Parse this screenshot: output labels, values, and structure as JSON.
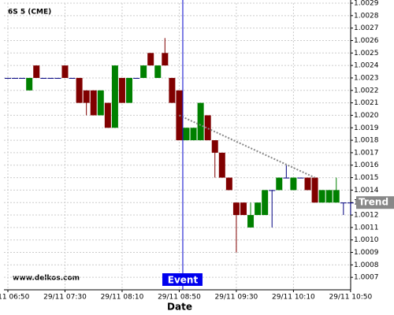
{
  "chart_data": {
    "type": "candlestick",
    "title": "6S 5 (CME)",
    "watermark": "www.delkos.com",
    "x_label": "Date",
    "x": [
      "29/11 06:50",
      "29/11 06:55",
      "29/11 07:00",
      "29/11 07:05",
      "29/11 07:10",
      "29/11 07:15",
      "29/11 07:20",
      "29/11 07:25",
      "29/11 07:30",
      "29/11 07:35",
      "29/11 07:40",
      "29/11 07:45",
      "29/11 07:50",
      "29/11 07:55",
      "29/11 08:00",
      "29/11 08:05",
      "29/11 08:10",
      "29/11 08:15",
      "29/11 08:20",
      "29/11 08:25",
      "29/11 08:30",
      "29/11 08:35",
      "29/11 08:40",
      "29/11 08:45",
      "29/11 08:50",
      "29/11 08:55",
      "29/11 09:00",
      "29/11 09:05",
      "29/11 09:10",
      "29/11 09:15",
      "29/11 09:20",
      "29/11 09:25",
      "29/11 09:30",
      "29/11 09:35",
      "29/11 09:40",
      "29/11 09:45",
      "29/11 09:50",
      "29/11 09:55",
      "29/11 10:00",
      "29/11 10:05",
      "29/11 10:10",
      "29/11 10:15",
      "29/11 10:20",
      "29/11 10:25",
      "29/11 10:30",
      "29/11 10:35",
      "29/11 10:40",
      "29/11 10:45",
      "29/11 10:50"
    ],
    "open": [
      1.0023,
      1.0023,
      1.0023,
      1.0022,
      1.0024,
      1.0023,
      1.0023,
      1.0023,
      1.0024,
      1.0023,
      1.0023,
      1.0022,
      1.0022,
      1.002,
      1.0021,
      1.0019,
      1.0023,
      1.0021,
      1.0023,
      1.0023,
      1.0025,
      1.0023,
      1.0025,
      1.0023,
      1.0022,
      1.0018,
      1.0018,
      1.0018,
      1.002,
      1.0018,
      1.0017,
      1.0015,
      1.0013,
      1.0013,
      1.0011,
      1.0012,
      1.0012,
      1.0014,
      1.0014,
      1.0015,
      1.0014,
      1.0015,
      1.0015,
      1.0015,
      1.0013,
      1.0013,
      1.0013,
      1.0013,
      1.0013
    ],
    "high": [
      1.0023,
      1.0023,
      1.0023,
      1.0023,
      1.0024,
      1.0023,
      1.0023,
      1.0023,
      1.0024,
      1.0023,
      1.0023,
      1.0022,
      1.0022,
      1.0022,
      1.0021,
      1.0024,
      1.0023,
      1.0023,
      1.0023,
      1.0024,
      1.0025,
      1.0024,
      1.00262,
      1.0023,
      1.0022,
      1.0019,
      1.0019,
      1.0021,
      1.002,
      1.0018,
      1.0017,
      1.0015,
      1.0013,
      1.0013,
      1.0013,
      1.0013,
      1.0014,
      1.0014,
      1.0015,
      1.0016,
      1.0015,
      1.0015,
      1.0015,
      1.0015,
      1.0014,
      1.0014,
      1.0015,
      1.0013,
      1.0013
    ],
    "low": [
      1.0023,
      1.0023,
      1.0023,
      1.0022,
      1.0023,
      1.0023,
      1.0023,
      1.0023,
      1.0023,
      1.0023,
      1.0021,
      1.002,
      1.002,
      1.002,
      1.0019,
      1.0019,
      1.0021,
      1.0021,
      1.0023,
      1.0023,
      1.0024,
      1.0023,
      1.0024,
      1.0021,
      1.0018,
      1.0018,
      1.0018,
      1.0018,
      1.0018,
      1.0015,
      1.0015,
      1.0014,
      1.0009,
      1.0012,
      1.0011,
      1.0012,
      1.0012,
      1.0011,
      1.0014,
      1.0015,
      1.0014,
      1.0015,
      1.0014,
      1.0013,
      1.0013,
      1.0013,
      1.0013,
      1.0012,
      1.0012
    ],
    "close": [
      1.0023,
      1.0023,
      1.0023,
      1.0023,
      1.0023,
      1.0023,
      1.0023,
      1.0023,
      1.0023,
      1.0023,
      1.0021,
      1.0021,
      1.002,
      1.0022,
      1.0019,
      1.0024,
      1.0021,
      1.0023,
      1.0023,
      1.0024,
      1.0024,
      1.0024,
      1.0024,
      1.0021,
      1.0018,
      1.0019,
      1.0019,
      1.0021,
      1.0018,
      1.0017,
      1.0015,
      1.0014,
      1.0012,
      1.0012,
      1.0012,
      1.0013,
      1.0014,
      1.0014,
      1.0015,
      1.0015,
      1.0015,
      1.0015,
      1.0014,
      1.0013,
      1.0014,
      1.0014,
      1.0014,
      1.0013,
      1.0013
    ],
    "up_color": "#008000",
    "down_color": "#800000",
    "flat_color": "#000080",
    "ylim": [
      1.0006,
      1.0029
    ],
    "yticks": [
      1.0007,
      1.0008,
      1.0009,
      {
        "value": 1.001,
        "label": "1.0010"
      },
      1.0011,
      1.0012,
      1.0013,
      1.0014,
      1.0015,
      1.0016,
      1.0017,
      1.0018,
      1.0019,
      {
        "value": 1.002,
        "label": "1.0020"
      },
      1.0021,
      1.0022,
      1.0023,
      1.0024,
      1.0025,
      1.0026,
      1.0027,
      1.0028,
      1.0029
    ],
    "xticks": [
      {
        "value": 0,
        "label": "29/11 06:50"
      },
      {
        "value": 8,
        "label": "29/11 07:30"
      },
      {
        "value": 16,
        "label": "29/11 08:10"
      },
      {
        "value": 24,
        "label": "29/11 08:50"
      },
      {
        "value": 32,
        "label": "29/11 09:30"
      },
      {
        "value": 40,
        "label": "29/11 10:10"
      },
      {
        "value": 48,
        "label": "29/11 10:50"
      }
    ],
    "grid": true,
    "event": {
      "label": "Event",
      "index": 24.5
    },
    "trend": {
      "label": "Trend",
      "x": [
        24,
        43
      ],
      "y": [
        1.002,
        1.0015
      ],
      "label_value": 1.0013
    }
  }
}
